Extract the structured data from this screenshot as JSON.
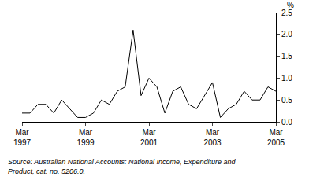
{
  "chart_data": {
    "type": "line",
    "y_label": "%",
    "source": [
      "Source: Australian National Accounts: National Income, Expenditure and",
      "Product, cat. no. 5206.0."
    ],
    "categories": [
      "Mar 1997",
      null,
      null,
      null,
      null,
      null,
      null,
      null,
      "Mar 1999",
      null,
      null,
      null,
      null,
      null,
      null,
      null,
      "Mar 2001",
      null,
      null,
      null,
      null,
      null,
      null,
      null,
      "Mar 2003",
      null,
      null,
      null,
      null,
      null,
      null,
      null,
      "Mar 2005"
    ],
    "values": [
      0.2,
      0.2,
      0.4,
      0.4,
      0.2,
      0.5,
      0.3,
      0.1,
      0.1,
      0.2,
      0.5,
      0.4,
      0.7,
      0.8,
      2.1,
      0.6,
      1.0,
      0.8,
      0.2,
      0.7,
      0.8,
      0.4,
      0.3,
      0.6,
      0.9,
      0.1,
      0.3,
      0.4,
      0.7,
      0.5,
      0.5,
      0.8,
      0.7
    ],
    "color": "#000000",
    "ylim": [
      0,
      2.5
    ],
    "yticks": [
      {
        "value": 0,
        "label": "0.0"
      },
      0.5,
      {
        "value": 1,
        "label": "1.0"
      },
      1.5,
      {
        "value": 2,
        "label": "2.0"
      },
      2.5
    ],
    "grid": false
  }
}
